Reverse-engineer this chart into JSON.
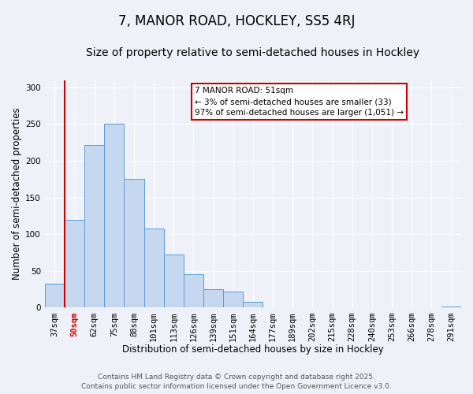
{
  "title": "7, MANOR ROAD, HOCKLEY, SS5 4RJ",
  "subtitle": "Size of property relative to semi-detached houses in Hockley",
  "xlabel": "Distribution of semi-detached houses by size in Hockley",
  "ylabel": "Number of semi-detached properties",
  "bar_labels": [
    "37sqm",
    "50sqm",
    "62sqm",
    "75sqm",
    "88sqm",
    "101sqm",
    "113sqm",
    "126sqm",
    "139sqm",
    "151sqm",
    "164sqm",
    "177sqm",
    "189sqm",
    "202sqm",
    "215sqm",
    "228sqm",
    "240sqm",
    "253sqm",
    "266sqm",
    "278sqm",
    "291sqm"
  ],
  "bar_values": [
    33,
    120,
    222,
    250,
    175,
    108,
    72,
    46,
    25,
    22,
    8,
    0,
    0,
    0,
    0,
    0,
    0,
    0,
    0,
    0,
    2
  ],
  "bar_color": "#c5d8f0",
  "bar_edge_color": "#5b9bd5",
  "ylim": [
    0,
    310
  ],
  "yticks": [
    0,
    50,
    100,
    150,
    200,
    250,
    300
  ],
  "annotation_title": "7 MANOR ROAD: 51sqm",
  "annotation_line1": "← 3% of semi-detached houses are smaller (33)",
  "annotation_line2": "97% of semi-detached houses are larger (1,051) →",
  "annotation_box_color": "#ffffff",
  "annotation_box_edge": "#cc0000",
  "red_line_color": "#cc0000",
  "footer_line1": "Contains HM Land Registry data © Crown copyright and database right 2025.",
  "footer_line2": "Contains public sector information licensed under the Open Government Licence v3.0.",
  "bg_color": "#eef2f8",
  "grid_color": "#ffffff",
  "title_fontsize": 12,
  "subtitle_fontsize": 10,
  "axis_label_fontsize": 8.5,
  "tick_fontsize": 7.5,
  "annotation_fontsize": 7.5,
  "footer_fontsize": 6.5
}
